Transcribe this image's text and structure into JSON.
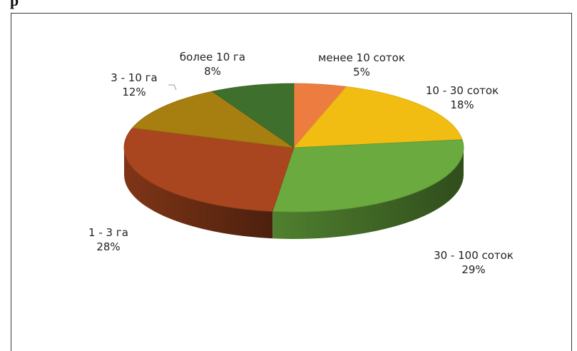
{
  "header_fragment": "р",
  "chart_data": {
    "type": "pie",
    "style": "3d",
    "slices": [
      {
        "label": "менее 10 соток",
        "value": 5,
        "value_label": "5%",
        "color": "#ec7c3f"
      },
      {
        "label": "10 - 30 соток",
        "value": 18,
        "value_label": "18%",
        "color": "#f2bd12"
      },
      {
        "label": "30 - 100 соток",
        "value": 29,
        "value_label": "29%",
        "color": "#6aaa3e"
      },
      {
        "label": "1 - 3 га",
        "value": 28,
        "value_label": "28%",
        "color": "#a9461f"
      },
      {
        "label": "3 - 10 га",
        "value": 12,
        "value_label": "12%",
        "color": "#a67f10"
      },
      {
        "label": "более 10 га",
        "value": 8,
        "value_label": "8%",
        "color": "#3f6f2c"
      }
    ]
  }
}
